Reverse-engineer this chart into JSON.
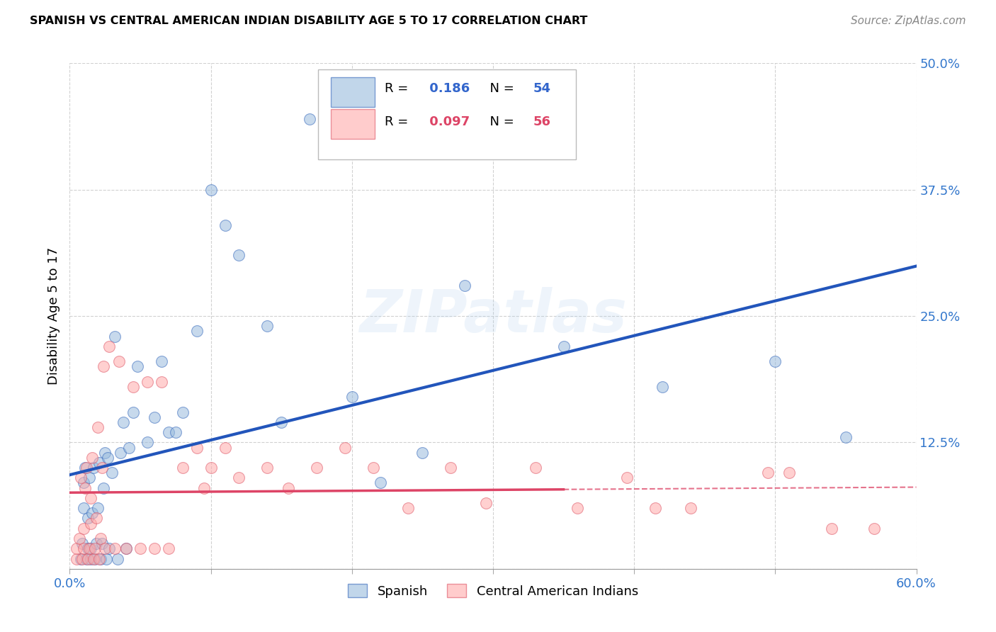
{
  "title": "SPANISH VS CENTRAL AMERICAN INDIAN DISABILITY AGE 5 TO 17 CORRELATION CHART",
  "source": "Source: ZipAtlas.com",
  "ylabel": "Disability Age 5 to 17",
  "xlim": [
    0.0,
    0.6
  ],
  "ylim": [
    0.0,
    0.5
  ],
  "xticks": [
    0.0,
    0.1,
    0.2,
    0.3,
    0.4,
    0.5,
    0.6
  ],
  "yticks": [
    0.0,
    0.125,
    0.25,
    0.375,
    0.5
  ],
  "ytick_labels": [
    "",
    "12.5%",
    "25.0%",
    "37.5%",
    "50.0%"
  ],
  "xtick_labels_show": [
    "0.0%",
    "",
    "",
    "",
    "",
    "",
    "60.0%"
  ],
  "grid_color": "#cccccc",
  "background_color": "#ffffff",
  "blue_color": "#99bbdd",
  "pink_color": "#ffaaaa",
  "blue_edge_color": "#3366bb",
  "pink_edge_color": "#dd5566",
  "blue_line_color": "#2255bb",
  "pink_line_color": "#dd4466",
  "R_blue": 0.186,
  "N_blue": 54,
  "R_pink": 0.097,
  "N_pink": 56,
  "blue_scatter_x": [
    0.008,
    0.009,
    0.01,
    0.01,
    0.011,
    0.012,
    0.013,
    0.013,
    0.014,
    0.015,
    0.015,
    0.016,
    0.017,
    0.018,
    0.019,
    0.02,
    0.021,
    0.022,
    0.023,
    0.024,
    0.025,
    0.026,
    0.027,
    0.028,
    0.03,
    0.032,
    0.034,
    0.036,
    0.038,
    0.04,
    0.042,
    0.045,
    0.048,
    0.055,
    0.06,
    0.065,
    0.07,
    0.075,
    0.08,
    0.09,
    0.1,
    0.11,
    0.12,
    0.14,
    0.15,
    0.17,
    0.2,
    0.22,
    0.25,
    0.28,
    0.35,
    0.42,
    0.5,
    0.55
  ],
  "blue_scatter_y": [
    0.01,
    0.025,
    0.06,
    0.085,
    0.1,
    0.01,
    0.02,
    0.05,
    0.09,
    0.01,
    0.02,
    0.055,
    0.1,
    0.01,
    0.025,
    0.06,
    0.105,
    0.01,
    0.025,
    0.08,
    0.115,
    0.01,
    0.11,
    0.02,
    0.095,
    0.23,
    0.01,
    0.115,
    0.145,
    0.02,
    0.12,
    0.155,
    0.2,
    0.125,
    0.15,
    0.205,
    0.135,
    0.135,
    0.155,
    0.235,
    0.375,
    0.34,
    0.31,
    0.24,
    0.145,
    0.445,
    0.17,
    0.085,
    0.115,
    0.28,
    0.22,
    0.18,
    0.205,
    0.13
  ],
  "pink_scatter_x": [
    0.005,
    0.005,
    0.007,
    0.008,
    0.009,
    0.01,
    0.01,
    0.011,
    0.012,
    0.013,
    0.014,
    0.015,
    0.015,
    0.016,
    0.017,
    0.018,
    0.019,
    0.02,
    0.021,
    0.022,
    0.023,
    0.024,
    0.025,
    0.028,
    0.032,
    0.035,
    0.04,
    0.045,
    0.05,
    0.055,
    0.06,
    0.065,
    0.07,
    0.08,
    0.09,
    0.095,
    0.1,
    0.11,
    0.12,
    0.14,
    0.155,
    0.175,
    0.195,
    0.215,
    0.24,
    0.27,
    0.295,
    0.33,
    0.36,
    0.395,
    0.415,
    0.44,
    0.495,
    0.51,
    0.54,
    0.57
  ],
  "pink_scatter_y": [
    0.01,
    0.02,
    0.03,
    0.09,
    0.01,
    0.02,
    0.04,
    0.08,
    0.1,
    0.01,
    0.02,
    0.045,
    0.07,
    0.11,
    0.01,
    0.02,
    0.05,
    0.14,
    0.01,
    0.03,
    0.1,
    0.2,
    0.02,
    0.22,
    0.02,
    0.205,
    0.02,
    0.18,
    0.02,
    0.185,
    0.02,
    0.185,
    0.02,
    0.1,
    0.12,
    0.08,
    0.1,
    0.12,
    0.09,
    0.1,
    0.08,
    0.1,
    0.12,
    0.1,
    0.06,
    0.1,
    0.065,
    0.1,
    0.06,
    0.09,
    0.06,
    0.06,
    0.095,
    0.095,
    0.04,
    0.04
  ],
  "watermark": "ZIPatlas",
  "pink_line_split_x": 0.35
}
